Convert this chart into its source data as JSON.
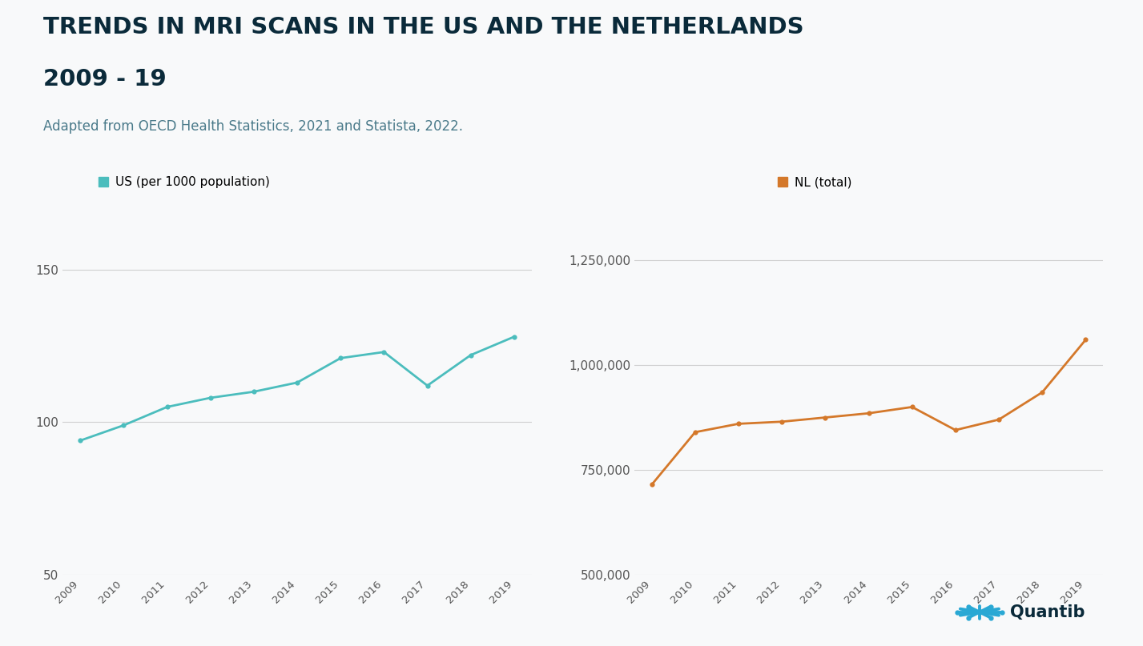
{
  "title_line1": "TRENDS IN MRI SCANS IN THE US AND THE NETHERLANDS",
  "title_line2": "2009 - 19",
  "subtitle": "Adapted from OECD Health Statistics, 2021 and Statista, 2022.",
  "title_color": "#0a2a3a",
  "subtitle_color": "#4a7a8a",
  "background_color": "#f8f9fa",
  "years": [
    2009,
    2010,
    2011,
    2012,
    2013,
    2014,
    2015,
    2016,
    2017,
    2018,
    2019
  ],
  "us_values": [
    94,
    99,
    105,
    108,
    110,
    113,
    121,
    123,
    112,
    122,
    128
  ],
  "nl_values": [
    715000,
    840000,
    860000,
    865000,
    875000,
    885000,
    900000,
    845000,
    870000,
    935000,
    1060000
  ],
  "us_color": "#4bbdbd",
  "nl_color": "#d4782a",
  "us_label": "US (per 1000 population)",
  "nl_label": "NL (total)",
  "us_ylim": [
    50,
    160
  ],
  "us_yticks": [
    50,
    100,
    150
  ],
  "nl_ylim": [
    500000,
    1300000
  ],
  "nl_yticks": [
    500000,
    750000,
    1000000,
    1250000
  ],
  "grid_color": "#d0d0d0",
  "tick_color": "#555555",
  "quantib_text": "Quantib",
  "quantib_color": "#0a2a3a",
  "quantib_icon_color": "#29a8d4"
}
